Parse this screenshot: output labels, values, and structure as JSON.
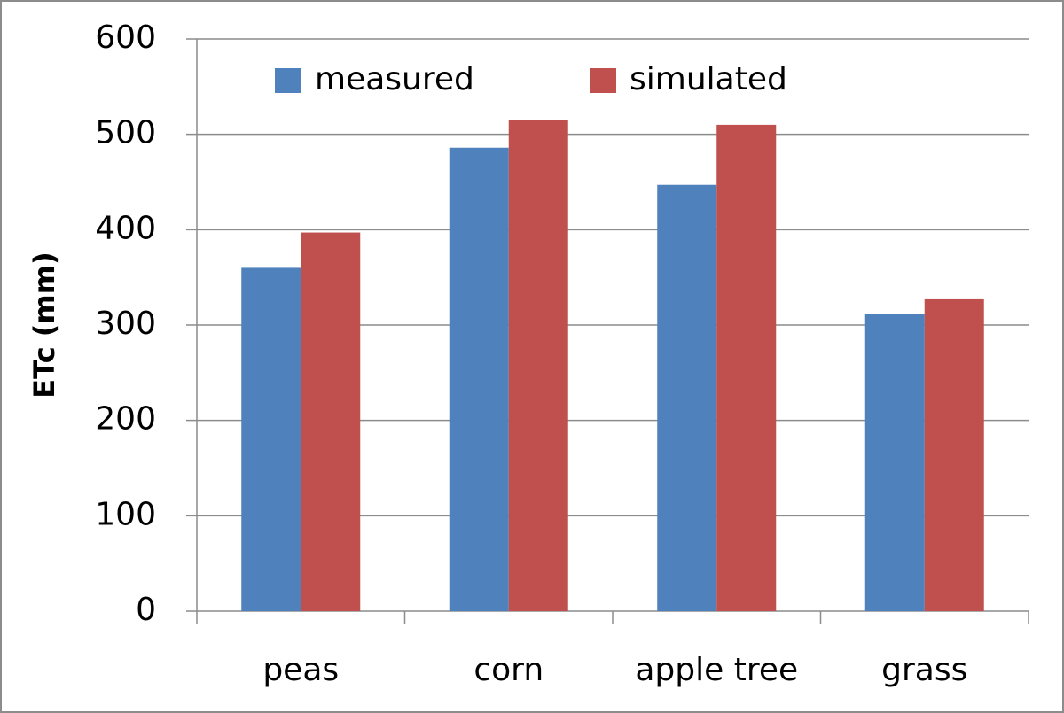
{
  "chart_data": {
    "type": "bar",
    "y_label": "ETc (mm)",
    "categories": [
      "peas",
      "corn",
      "apple tree",
      "grass"
    ],
    "series": [
      {
        "name": "measured",
        "color": "#4f81bd",
        "values": [
          360,
          486,
          447,
          312
        ]
      },
      {
        "name": "simulated",
        "color": "#c0504d",
        "values": [
          397,
          515,
          510,
          327
        ]
      }
    ],
    "ylim": [
      0,
      600
    ],
    "yticks": [
      0,
      100,
      200,
      300,
      400,
      500,
      600
    ],
    "grid": true,
    "legend": "top"
  }
}
